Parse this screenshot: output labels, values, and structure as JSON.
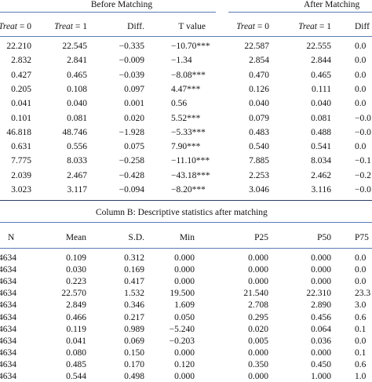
{
  "panelA": {
    "group_before": "Before Matching",
    "group_after": "After Matching",
    "headers": {
      "before_t0": "Treat = 0",
      "before_t1": "Treat = 1",
      "before_diff": "Diff.",
      "before_tvalue": "T value",
      "after_t0": "Treat = 0",
      "after_t1": "Treat = 1",
      "after_diff": "Diff"
    },
    "rows": [
      {
        "b0": "22.210",
        "b1": "22.545",
        "bd": "−0.335",
        "bt": "−10.70***",
        "a0": "22.587",
        "a1": "22.555",
        "ad": "0.0"
      },
      {
        "b0": "2.832",
        "b1": "2.841",
        "bd": "−0.009",
        "bt": "−1.34",
        "a0": "2.854",
        "a1": "2.844",
        "ad": "0.0"
      },
      {
        "b0": "0.427",
        "b1": "0.465",
        "bd": "−0.039",
        "bt": "−8.08***",
        "a0": "0.470",
        "a1": "0.465",
        "ad": "0.0"
      },
      {
        "b0": "0.205",
        "b1": "0.108",
        "bd": "0.097",
        "bt": "4.47***",
        "a0": "0.126",
        "a1": "0.111",
        "ad": "0.0"
      },
      {
        "b0": "0.041",
        "b1": "0.040",
        "bd": "0.001",
        "bt": "0.56",
        "a0": "0.040",
        "a1": "0.040",
        "ad": "0.0"
      },
      {
        "b0": "0.101",
        "b1": "0.081",
        "bd": "0.020",
        "bt": "5.52***",
        "a0": "0.079",
        "a1": "0.081",
        "ad": "−0.0"
      },
      {
        "b0": "46.818",
        "b1": "48.746",
        "bd": "−1.928",
        "bt": "−5.33***",
        "a0": "0.483",
        "a1": "0.488",
        "ad": "−0.0"
      },
      {
        "b0": "0.631",
        "b1": "0.556",
        "bd": "0.075",
        "bt": "7.90***",
        "a0": "0.540",
        "a1": "0.541",
        "ad": "0.0"
      },
      {
        "b0": "7.775",
        "b1": "8.033",
        "bd": "−0.258",
        "bt": "−11.10***",
        "a0": "7.885",
        "a1": "8.034",
        "ad": "−0.1"
      },
      {
        "b0": "2.039",
        "b1": "2.467",
        "bd": "−0.428",
        "bt": "−43.18***",
        "a0": "2.253",
        "a1": "2.462",
        "ad": "−0.2"
      },
      {
        "b0": "3.023",
        "b1": "3.117",
        "bd": "−0.094",
        "bt": "−8.20***",
        "a0": "3.046",
        "a1": "3.116",
        "ad": "−0.0"
      }
    ]
  },
  "panelB": {
    "title": "Column B: Descriptive statistics after matching",
    "headers": {
      "n": "N",
      "mean": "Mean",
      "sd": "S.D.",
      "min": "Min",
      "p25": "P25",
      "p50": "P50",
      "p75": "P75"
    },
    "rows": [
      {
        "n": "4634",
        "mean": "0.109",
        "sd": "0.312",
        "min": "0.000",
        "p25": "0.000",
        "p50": "0.000",
        "p75": "0.0"
      },
      {
        "n": "4634",
        "mean": "0.030",
        "sd": "0.169",
        "min": "0.000",
        "p25": "0.000",
        "p50": "0.000",
        "p75": "0.0"
      },
      {
        "n": "4634",
        "mean": "0.223",
        "sd": "0.417",
        "min": "0.000",
        "p25": "0.000",
        "p50": "0.000",
        "p75": "0.0"
      },
      {
        "n": "4634",
        "mean": "22.570",
        "sd": "1.532",
        "min": "19.500",
        "p25": "21.540",
        "p50": "22.310",
        "p75": "23.3"
      },
      {
        "n": "4634",
        "mean": "2.849",
        "sd": "0.346",
        "min": "1.609",
        "p25": "2.708",
        "p50": "2.890",
        "p75": "3.0"
      },
      {
        "n": "4634",
        "mean": "0.466",
        "sd": "0.217",
        "min": "0.050",
        "p25": "0.295",
        "p50": "0.456",
        "p75": "0.6"
      },
      {
        "n": "4634",
        "mean": "0.119",
        "sd": "0.989",
        "min": "−5.240",
        "p25": "0.020",
        "p50": "0.064",
        "p75": "0.1"
      },
      {
        "n": "4634",
        "mean": "0.041",
        "sd": "0.069",
        "min": "−0.203",
        "p25": "0.005",
        "p50": "0.036",
        "p75": "0.0"
      },
      {
        "n": "4634",
        "mean": "0.080",
        "sd": "0.150",
        "min": "0.000",
        "p25": "0.000",
        "p50": "0.000",
        "p75": "0.1"
      },
      {
        "n": "4634",
        "mean": "0.485",
        "sd": "0.170",
        "min": "0.120",
        "p25": "0.350",
        "p50": "0.450",
        "p75": "0.6"
      },
      {
        "n": "4634",
        "mean": "0.544",
        "sd": "0.498",
        "min": "0.000",
        "p25": "0.000",
        "p50": "1.000",
        "p75": "1.0"
      }
    ]
  }
}
